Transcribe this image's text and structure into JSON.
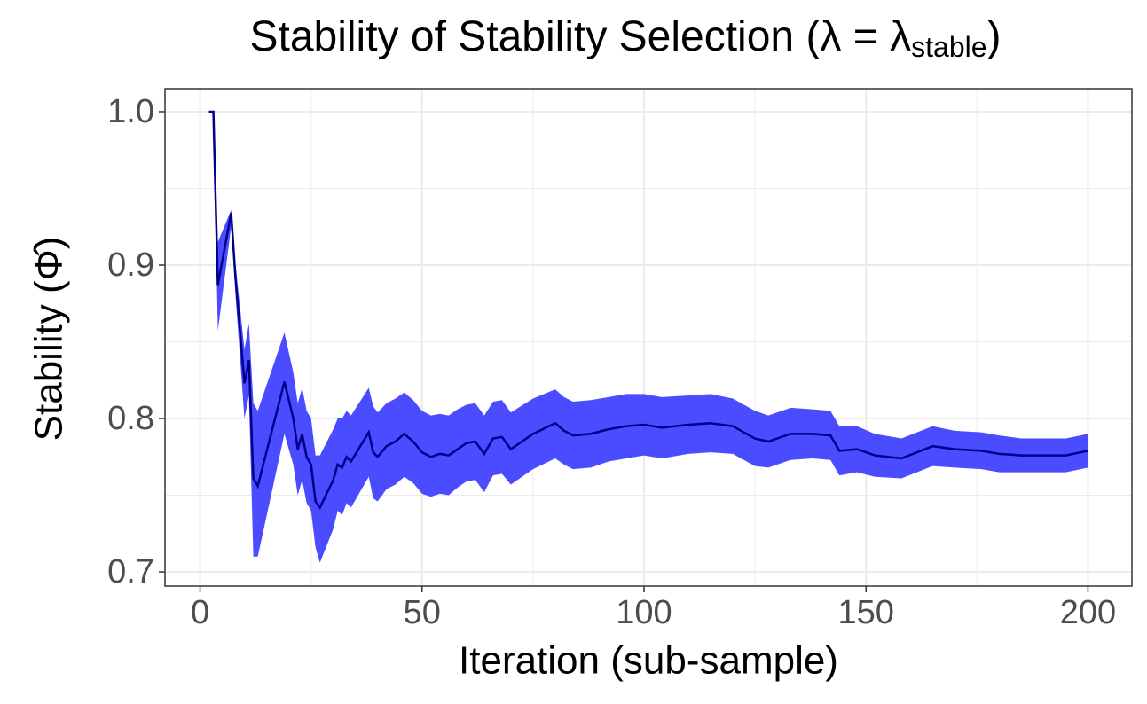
{
  "chart_data": {
    "type": "ribbon-line",
    "title": "Stability of Stability Selection (λ = λ",
    "title_subscript": "stable",
    "title_end": ")",
    "x_label": "Iteration (sub-sample)",
    "y_label": "Stability (Φ̂)",
    "x": [
      2,
      3,
      4,
      7,
      8,
      10,
      11,
      12,
      13,
      19,
      21,
      22,
      23,
      24,
      25,
      26,
      27,
      30,
      31,
      32,
      33,
      34,
      38,
      39,
      40,
      42,
      44,
      46,
      48,
      50,
      52,
      54,
      56,
      58,
      60,
      62,
      64,
      66,
      68,
      70,
      75,
      80,
      82,
      84,
      88,
      92,
      96,
      100,
      104,
      110,
      115,
      120,
      125,
      128,
      133,
      138,
      142,
      144,
      148,
      152,
      158,
      165,
      170,
      176,
      180,
      185,
      190,
      195,
      200
    ],
    "y": [
      1,
      1,
      0.887,
      0.934,
      0.891,
      0.823,
      0.838,
      0.761,
      0.756,
      0.824,
      0.8,
      0.78,
      0.79,
      0.775,
      0.77,
      0.746,
      0.742,
      0.76,
      0.77,
      0.768,
      0.775,
      0.772,
      0.791,
      0.778,
      0.775,
      0.782,
      0.785,
      0.79,
      0.785,
      0.778,
      0.775,
      0.777,
      0.776,
      0.78,
      0.784,
      0.785,
      0.777,
      0.787,
      0.788,
      0.78,
      0.79,
      0.797,
      0.792,
      0.789,
      0.79,
      0.793,
      0.795,
      0.796,
      0.794,
      0.796,
      0.797,
      0.795,
      0.787,
      0.785,
      0.79,
      0.79,
      0.789,
      0.779,
      0.78,
      0.776,
      0.774,
      0.782,
      0.78,
      0.779,
      0.777,
      0.776,
      0.776,
      0.776,
      0.779
    ],
    "lower": [
      1,
      1,
      0.857,
      0.925,
      0.88,
      0.8,
      0.815,
      0.71,
      0.71,
      0.79,
      0.77,
      0.75,
      0.76,
      0.745,
      0.74,
      0.716,
      0.706,
      0.728,
      0.74,
      0.737,
      0.745,
      0.742,
      0.762,
      0.748,
      0.746,
      0.754,
      0.757,
      0.762,
      0.758,
      0.751,
      0.749,
      0.751,
      0.75,
      0.755,
      0.759,
      0.76,
      0.752,
      0.763,
      0.764,
      0.757,
      0.767,
      0.774,
      0.77,
      0.767,
      0.768,
      0.772,
      0.774,
      0.776,
      0.774,
      0.777,
      0.778,
      0.777,
      0.769,
      0.768,
      0.773,
      0.774,
      0.773,
      0.763,
      0.765,
      0.762,
      0.761,
      0.769,
      0.768,
      0.767,
      0.765,
      0.765,
      0.765,
      0.765,
      0.768
    ],
    "upper": [
      1,
      1,
      0.915,
      0.936,
      0.9,
      0.845,
      0.862,
      0.81,
      0.805,
      0.856,
      0.83,
      0.81,
      0.82,
      0.805,
      0.8,
      0.776,
      0.776,
      0.793,
      0.8,
      0.8,
      0.805,
      0.802,
      0.82,
      0.808,
      0.804,
      0.81,
      0.813,
      0.817,
      0.812,
      0.805,
      0.802,
      0.803,
      0.802,
      0.806,
      0.809,
      0.81,
      0.802,
      0.811,
      0.812,
      0.804,
      0.813,
      0.819,
      0.814,
      0.811,
      0.812,
      0.814,
      0.816,
      0.816,
      0.814,
      0.815,
      0.816,
      0.813,
      0.805,
      0.802,
      0.807,
      0.806,
      0.805,
      0.795,
      0.795,
      0.79,
      0.787,
      0.795,
      0.792,
      0.791,
      0.789,
      0.787,
      0.787,
      0.787,
      0.79
    ],
    "line_color": "#00008b",
    "ribbon_color": "#4b4bff",
    "xlim": [
      -7.9,
      209.9
    ],
    "ylim": [
      0.6908,
      1.015
    ],
    "xticks": [
      0,
      50,
      100,
      150,
      200
    ],
    "yticks": [
      {
        "value": 0.7,
        "label": "0.7"
      },
      {
        "value": 0.8,
        "label": "0.8"
      },
      {
        "value": 0.9,
        "label": "0.9"
      },
      {
        "value": 1.0,
        "label": "1.0"
      }
    ],
    "x_minor_grid": [
      25,
      75,
      125,
      175
    ],
    "y_minor_grid": [
      0.75,
      0.85,
      0.95
    ],
    "grid": true
  }
}
